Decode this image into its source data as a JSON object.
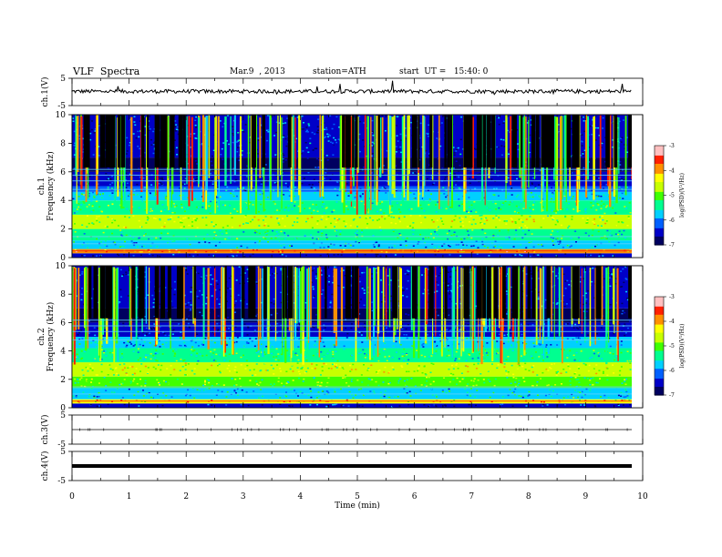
{
  "header": {
    "title": "VLF  Spectra",
    "date": "Mar.9  , 2013",
    "station": "station=ATH",
    "start": "start  UT =   15:40: 0"
  },
  "chart_data": [
    {
      "type": "line",
      "panel": "ch1-waveform",
      "ylabel": "ch.1(V)",
      "ylim": [
        -5,
        5
      ],
      "yticks": [
        "5",
        "-5"
      ],
      "baseline": 0,
      "description_of_trace": "noisy waveform near 0 V with occasional spikes"
    },
    {
      "type": "heatmap",
      "panel": "ch1-spectrogram",
      "ylabel": "ch.1\nFrequency (kHz)",
      "ylim": [
        0,
        10
      ],
      "yticks": [
        "0",
        "2",
        "4",
        "6",
        "8",
        "10"
      ],
      "xlim": [
        0,
        9.8
      ],
      "colorbar": {
        "label": "log(PSD)(V²/Hz)",
        "range": [
          -7,
          -3
        ],
        "ticks": [
          "-3",
          "-4",
          "-5",
          "-6",
          "-7"
        ],
        "colors": [
          "#000080",
          "#0000ff",
          "#00ffff",
          "#00ff00",
          "#ffff00",
          "#ff8000",
          "#ff0000",
          "#ffffff"
        ]
      },
      "bands": [
        {
          "f_low": 0.0,
          "f_high": 0.3,
          "level": -6.5
        },
        {
          "f_low": 0.3,
          "f_high": 0.6,
          "level": -4.0
        },
        {
          "f_low": 0.6,
          "f_high": 1.2,
          "level": -5.8
        },
        {
          "f_low": 1.2,
          "f_high": 2.0,
          "level": -5.4
        },
        {
          "f_low": 2.0,
          "f_high": 3.0,
          "level": -4.8
        },
        {
          "f_low": 3.0,
          "f_high": 4.0,
          "level": -5.2
        },
        {
          "f_low": 4.0,
          "f_high": 4.6,
          "level": -5.6
        },
        {
          "f_low": 4.6,
          "f_high": 5.0,
          "level": -6.0
        },
        {
          "f_low": 5.0,
          "f_high": 6.0,
          "level": -6.6
        },
        {
          "f_low": 6.0,
          "f_high": 7.0,
          "level": -6.8
        },
        {
          "f_low": 7.0,
          "f_high": 10.0,
          "level": -6.3
        }
      ]
    },
    {
      "type": "heatmap",
      "panel": "ch2-spectrogram",
      "ylabel": "ch.2\nFrequency (kHz)",
      "ylim": [
        0,
        10
      ],
      "yticks": [
        "0",
        "2",
        "4",
        "6",
        "8",
        "10"
      ],
      "xlim": [
        0,
        9.8
      ],
      "colorbar": {
        "label": "log(PSD)(V²/Hz)",
        "range": [
          -7,
          -3
        ],
        "ticks": [
          "-3",
          "-4",
          "-5",
          "-6",
          "-7"
        ],
        "colors": [
          "#000080",
          "#0000ff",
          "#00ffff",
          "#00ff00",
          "#ffff00",
          "#ff8000",
          "#ff0000",
          "#ffffff"
        ]
      },
      "bands": [
        {
          "f_low": 0.0,
          "f_high": 0.3,
          "level": -6.5
        },
        {
          "f_low": 0.3,
          "f_high": 0.6,
          "level": -4.2
        },
        {
          "f_low": 0.6,
          "f_high": 1.4,
          "level": -5.6
        },
        {
          "f_low": 1.4,
          "f_high": 2.2,
          "level": -5.0
        },
        {
          "f_low": 2.2,
          "f_high": 3.2,
          "level": -4.7
        },
        {
          "f_low": 3.2,
          "f_high": 4.2,
          "level": -5.3
        },
        {
          "f_low": 4.2,
          "f_high": 5.0,
          "level": -5.8
        },
        {
          "f_low": 5.0,
          "f_high": 6.0,
          "level": -6.6
        },
        {
          "f_low": 6.0,
          "f_high": 7.0,
          "level": -6.9
        },
        {
          "f_low": 7.0,
          "f_high": 10.0,
          "level": -6.4
        }
      ]
    },
    {
      "type": "line",
      "panel": "ch3-waveform",
      "ylabel": "ch.3(V)",
      "ylim": [
        -5,
        5
      ],
      "yticks": [
        "5",
        "-5"
      ],
      "baseline": 0
    },
    {
      "type": "line",
      "panel": "ch4-waveform",
      "ylabel": "ch.4(V)",
      "ylim": [
        -5,
        5
      ],
      "yticks": [
        "5",
        "-5"
      ],
      "baseline": 0
    }
  ],
  "xaxis": {
    "label": "Time  (min)",
    "xlim": [
      0,
      10
    ],
    "ticks": [
      "0",
      "1",
      "2",
      "3",
      "4",
      "5",
      "6",
      "7",
      "8",
      "9",
      "10"
    ]
  }
}
